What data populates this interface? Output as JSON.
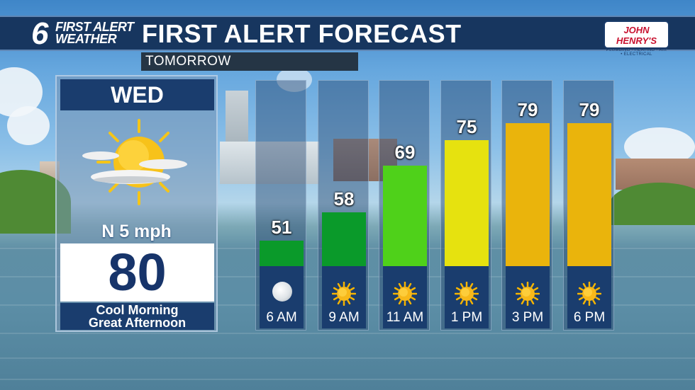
{
  "header": {
    "logo_number": "6",
    "logo_line1": "FIRST ALERT",
    "logo_line2": "WEATHER",
    "title": "FIRST ALERT FORECAST",
    "subtitle": "TOMORROW",
    "sponsor_name": "JOHN HENRY'S",
    "sponsor_tagline": "PLUMBING • HEATING • AIR • ELECTRICAL"
  },
  "day": {
    "name": "WED",
    "icon": "sun-with-clouds-icon",
    "wind": "N 5 mph",
    "high": "80",
    "description_line1": "Cool Morning",
    "description_line2": "Great Afternoon"
  },
  "hourly": [
    {
      "time": "6 AM",
      "temp": "51",
      "value": 51,
      "color": "#0a9a2a",
      "icon": "moon-icon"
    },
    {
      "time": "9 AM",
      "temp": "58",
      "value": 58,
      "color": "#0a9a2a",
      "icon": "sun-icon"
    },
    {
      "time": "11 AM",
      "temp": "69",
      "value": 69,
      "color": "#4fd11a",
      "icon": "sun-icon"
    },
    {
      "time": "1 PM",
      "temp": "75",
      "value": 75,
      "color": "#e6e20f",
      "icon": "sun-icon"
    },
    {
      "time": "3 PM",
      "temp": "79",
      "value": 79,
      "color": "#eab40c",
      "icon": "sun-icon"
    },
    {
      "time": "6 PM",
      "temp": "79",
      "value": 79,
      "color": "#eab40c",
      "icon": "sun-icon"
    }
  ]
}
